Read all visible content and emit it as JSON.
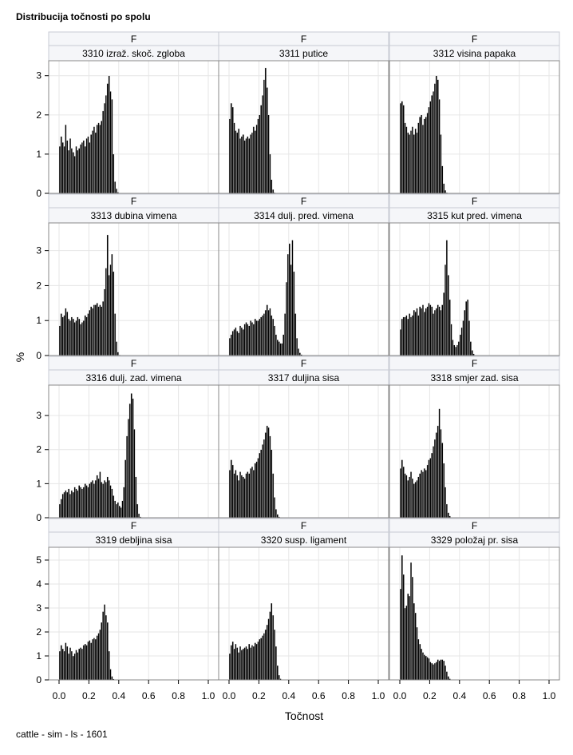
{
  "title": "Distribucija točnosti po spolu",
  "footer": "cattle - sim - ls - 1601",
  "chart_data": {
    "type": "bar",
    "subtype": "histogram-panel",
    "xlabel": "Točnost",
    "ylabel": "%",
    "xlim": [
      0,
      1.0
    ],
    "x_ticks": [
      "0.0",
      "0.2",
      "0.4",
      "0.6",
      "0.8",
      "1.0"
    ],
    "bin_width": 0.01,
    "grid": true,
    "rows": [
      {
        "ylim": [
          0,
          3.3
        ],
        "y_ticks": [
          "0",
          "1",
          "2",
          "3"
        ]
      },
      {
        "ylim": [
          0,
          3.7
        ],
        "y_ticks": [
          "0",
          "1",
          "2",
          "3"
        ]
      },
      {
        "ylim": [
          0,
          3.8
        ],
        "y_ticks": [
          "0",
          "1",
          "2",
          "3"
        ]
      },
      {
        "ylim": [
          0,
          5.4
        ],
        "y_ticks": [
          "0",
          "1",
          "2",
          "3",
          "4",
          "5"
        ]
      }
    ],
    "panels": [
      {
        "sex": "F",
        "trait": "3310 izraž. skoč. zgloba",
        "bin_start": 0.0,
        "values": [
          1.2,
          1.45,
          1.3,
          1.2,
          1.75,
          1.35,
          1.1,
          1.4,
          1.15,
          1.05,
          0.95,
          1.2,
          1.1,
          1.15,
          1.25,
          1.3,
          1.35,
          1.2,
          1.4,
          1.45,
          1.3,
          1.5,
          1.6,
          1.7,
          1.55,
          1.75,
          1.8,
          1.75,
          1.85,
          2.1,
          2.3,
          2.5,
          2.8,
          3.0,
          2.6,
          2.4,
          1.0,
          0.3,
          0.12,
          0.03
        ]
      },
      {
        "sex": "F",
        "trait": "3311 putice",
        "bin_start": 0.0,
        "values": [
          1.9,
          2.3,
          2.2,
          1.8,
          1.6,
          1.55,
          1.65,
          1.4,
          1.45,
          1.5,
          1.35,
          1.4,
          1.45,
          1.4,
          1.5,
          1.55,
          1.7,
          1.6,
          1.75,
          1.9,
          2.0,
          2.25,
          2.5,
          2.9,
          3.2,
          2.7,
          2.0,
          1.0,
          0.35,
          0.1,
          0.02
        ]
      },
      {
        "sex": "F",
        "trait": "3312 visina papaka",
        "bin_start": 0.0,
        "values": [
          2.3,
          2.35,
          2.25,
          1.8,
          1.7,
          1.55,
          1.5,
          1.6,
          1.7,
          1.5,
          1.65,
          1.55,
          1.8,
          1.95,
          2.0,
          1.75,
          1.9,
          1.95,
          2.05,
          2.2,
          2.35,
          2.5,
          2.6,
          2.8,
          3.0,
          2.9,
          2.4,
          1.5,
          0.7,
          0.25,
          0.08,
          0.02
        ]
      },
      {
        "sex": "F",
        "trait": "3313 dubina vimena",
        "bin_start": 0.0,
        "values": [
          0.85,
          1.2,
          1.1,
          1.15,
          1.35,
          1.25,
          1.05,
          1.0,
          1.1,
          1.05,
          0.95,
          1.0,
          1.1,
          1.05,
          0.9,
          0.95,
          1.0,
          1.15,
          1.1,
          1.2,
          1.3,
          1.4,
          1.35,
          1.45,
          1.45,
          1.5,
          1.4,
          1.45,
          1.4,
          1.55,
          1.9,
          2.5,
          3.45,
          2.3,
          2.6,
          2.9,
          2.4,
          1.2,
          0.4,
          0.1,
          0.02
        ]
      },
      {
        "sex": "F",
        "trait": "3314 dulj. pred. vimena",
        "bin_start": 0.0,
        "values": [
          0.5,
          0.6,
          0.7,
          0.75,
          0.8,
          0.7,
          0.65,
          0.85,
          0.8,
          0.75,
          0.9,
          0.95,
          0.9,
          0.85,
          1.0,
          0.95,
          0.9,
          1.05,
          1.0,
          1.0,
          1.05,
          1.1,
          1.15,
          1.2,
          1.3,
          1.45,
          1.3,
          1.35,
          1.15,
          1.05,
          0.85,
          0.6,
          0.45,
          0.4,
          0.35,
          0.35,
          0.6,
          1.2,
          2.1,
          2.9,
          3.2,
          2.6,
          3.3,
          2.4,
          1.2,
          0.5,
          0.2,
          0.08,
          0.03
        ]
      },
      {
        "sex": "F",
        "trait": "3315 kut pred. vimena",
        "bin_start": 0.0,
        "values": [
          0.75,
          1.05,
          1.1,
          1.1,
          1.15,
          1.05,
          1.2,
          1.1,
          1.15,
          1.3,
          1.25,
          1.35,
          1.15,
          1.4,
          1.35,
          1.45,
          1.25,
          1.35,
          1.4,
          1.5,
          1.45,
          1.4,
          1.2,
          1.3,
          1.35,
          1.45,
          1.4,
          1.3,
          1.45,
          1.8,
          2.6,
          3.3,
          2.3,
          1.6,
          0.9,
          0.45,
          0.3,
          0.25,
          0.3,
          0.4,
          0.6,
          0.8,
          1.0,
          1.3,
          1.55,
          1.6,
          1.0,
          0.4,
          0.15,
          0.05
        ]
      },
      {
        "sex": "F",
        "trait": "3316 dulj. zad. vimena",
        "bin_start": 0.0,
        "values": [
          0.4,
          0.55,
          0.7,
          0.75,
          0.8,
          0.75,
          0.85,
          0.7,
          0.8,
          0.75,
          0.9,
          0.85,
          0.8,
          0.95,
          0.9,
          0.85,
          0.9,
          1.0,
          0.95,
          0.9,
          1.0,
          1.05,
          1.1,
          1.0,
          1.1,
          1.25,
          1.15,
          1.35,
          1.05,
          1.0,
          1.1,
          1.05,
          1.2,
          1.1,
          0.95,
          0.85,
          0.65,
          0.5,
          0.4,
          0.45,
          0.35,
          0.3,
          0.5,
          0.9,
          1.7,
          2.4,
          2.9,
          3.35,
          3.65,
          3.5,
          2.6,
          1.2,
          0.4,
          0.12,
          0.03
        ]
      },
      {
        "sex": "F",
        "trait": "3317 duljina sisa",
        "bin_start": 0.0,
        "values": [
          1.4,
          1.7,
          1.55,
          1.3,
          1.4,
          1.25,
          1.1,
          1.35,
          1.25,
          1.2,
          1.15,
          1.3,
          1.35,
          1.3,
          1.45,
          1.5,
          1.4,
          1.6,
          1.65,
          1.75,
          1.9,
          2.0,
          2.15,
          2.3,
          2.5,
          2.7,
          2.65,
          2.4,
          2.0,
          1.3,
          0.6,
          0.25,
          0.1,
          0.03
        ]
      },
      {
        "sex": "F",
        "trait": "3318 smjer zad. sisa",
        "bin_start": 0.0,
        "values": [
          1.45,
          1.7,
          1.5,
          1.3,
          1.25,
          1.1,
          1.2,
          1.35,
          1.15,
          1.0,
          1.05,
          1.1,
          1.2,
          1.3,
          1.4,
          1.35,
          1.45,
          1.4,
          1.55,
          1.7,
          1.75,
          1.9,
          2.1,
          2.3,
          2.5,
          2.7,
          3.2,
          2.6,
          2.2,
          1.6,
          0.9,
          0.4,
          0.15,
          0.05
        ]
      },
      {
        "sex": "F",
        "trait": "3319 debljina sisa",
        "bin_start": 0.0,
        "values": [
          1.2,
          1.45,
          1.3,
          1.2,
          1.55,
          1.4,
          1.1,
          1.35,
          1.2,
          1.0,
          1.1,
          1.25,
          1.15,
          1.3,
          1.35,
          1.3,
          1.45,
          1.5,
          1.45,
          1.6,
          1.65,
          1.55,
          1.7,
          1.75,
          1.7,
          1.85,
          1.95,
          2.1,
          2.4,
          2.85,
          3.15,
          2.7,
          2.4,
          1.2,
          0.45,
          0.15,
          0.04
        ]
      },
      {
        "sex": "F",
        "trait": "3320 susp. ligament",
        "bin_start": 0.0,
        "values": [
          1.1,
          1.45,
          1.6,
          1.3,
          1.5,
          1.35,
          1.15,
          1.4,
          1.25,
          1.3,
          1.35,
          1.4,
          1.3,
          1.5,
          1.35,
          1.45,
          1.4,
          1.55,
          1.5,
          1.6,
          1.7,
          1.75,
          1.85,
          1.95,
          2.1,
          2.3,
          2.55,
          2.85,
          3.2,
          2.7,
          2.1,
          1.4,
          0.6,
          0.2,
          0.05
        ]
      },
      {
        "sex": "F",
        "trait": "3329 položaj pr. sisa",
        "bin_start": 0.0,
        "values": [
          3.8,
          5.2,
          4.4,
          3.0,
          3.1,
          3.6,
          3.5,
          4.9,
          4.3,
          3.2,
          2.8,
          2.2,
          1.7,
          1.5,
          1.3,
          1.15,
          1.05,
          1.0,
          0.95,
          0.9,
          0.75,
          0.7,
          0.65,
          0.7,
          0.75,
          0.85,
          0.8,
          0.85,
          0.85,
          0.8,
          0.6,
          0.35,
          0.15,
          0.05
        ]
      }
    ]
  }
}
